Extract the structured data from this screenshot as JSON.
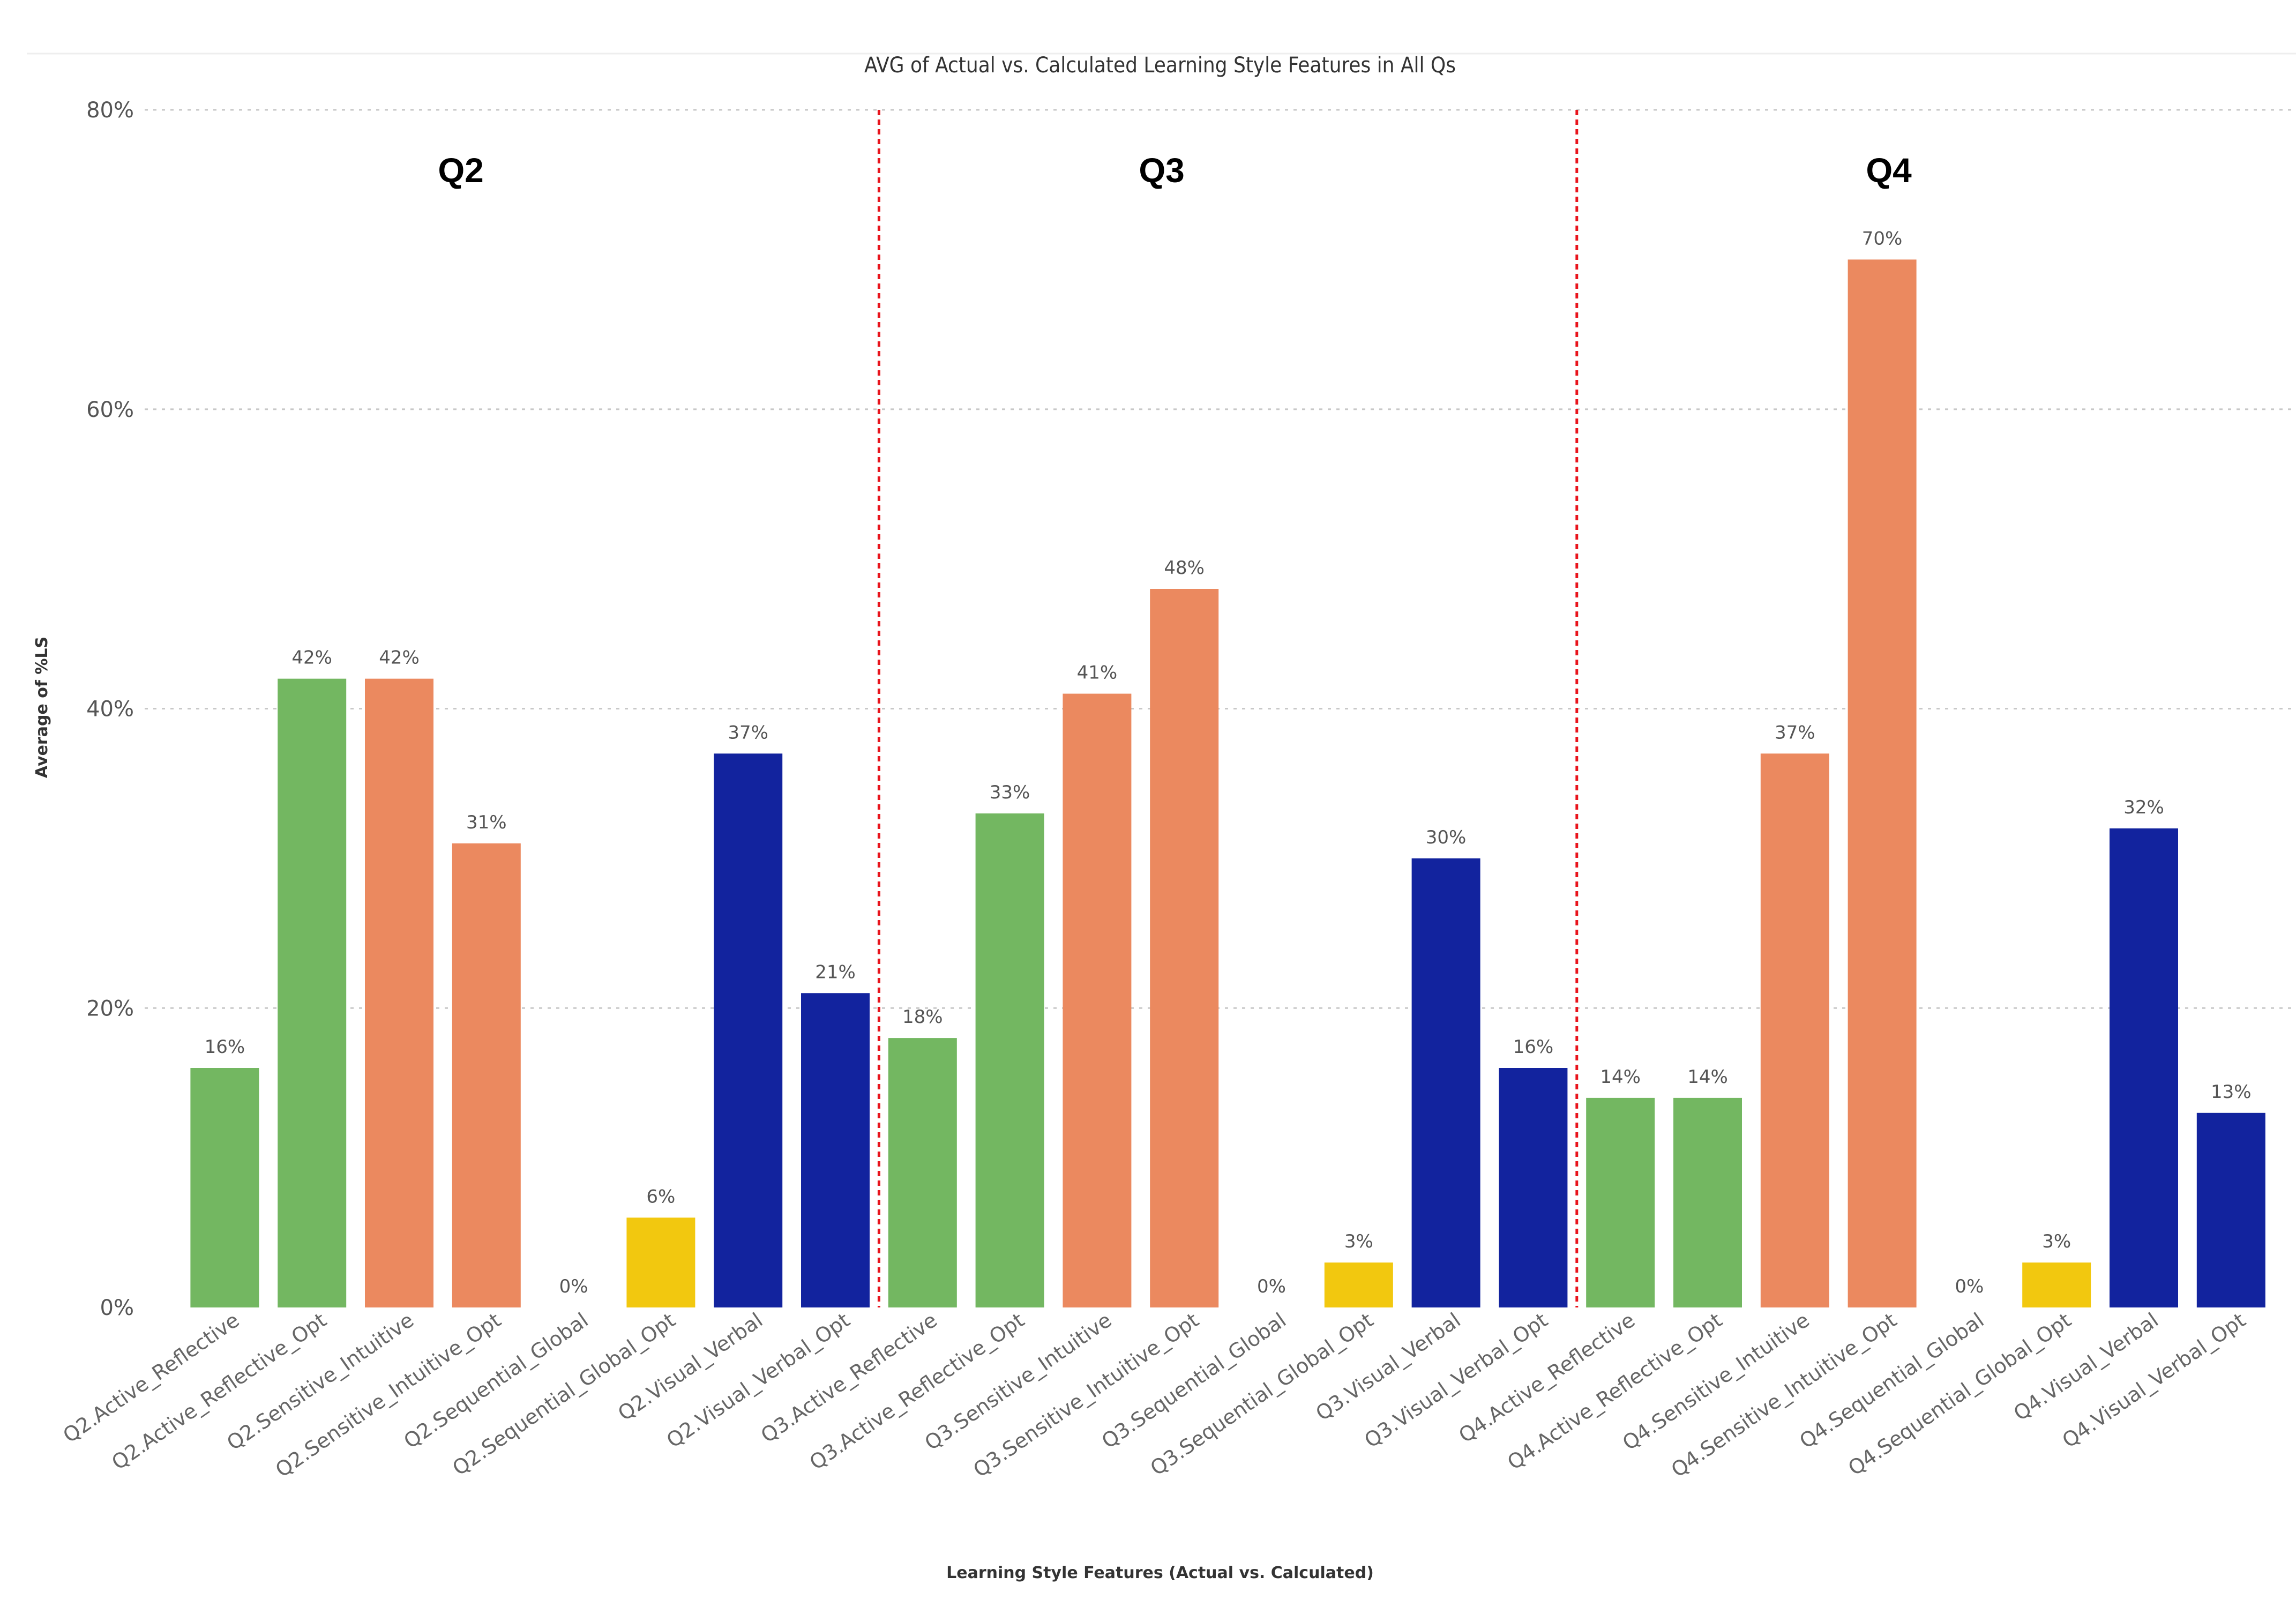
{
  "chart_data": {
    "type": "bar",
    "title": "AVG of Actual vs. Calculated Learning Style Features in All Qs",
    "xlabel": "Learning Style Features (Actual vs. Calculated)",
    "ylabel": "Average of %LS",
    "ylim": [
      0,
      80
    ],
    "yticks": [
      0,
      20,
      40,
      60,
      80
    ],
    "ytick_suffix": "%",
    "grid": true,
    "colors": {
      "active_reflective": "#73b761",
      "sensitive_intuitive": "#eb895f",
      "sequential_global": "#f2c80f",
      "visual_verbal": "#12239e",
      "divider": "#e8141c"
    },
    "categories": [
      "Q2.Active_Reflective",
      "Q2.Active_Reflective_Opt",
      "Q2.Sensitive_Intuitive",
      "Q2.Sensitive_Intuitive_Opt",
      "Q2.Sequential_Global",
      "Q2.Sequential_Global_Opt",
      "Q2.Visual_Verbal",
      "Q2.Visual_Verbal_Opt",
      "Q3.Active_Reflective",
      "Q3.Active_Reflective_Opt",
      "Q3.Sensitive_Intuitive",
      "Q3.Sensitive_Intuitive_Opt",
      "Q3.Sequential_Global",
      "Q3.Sequential_Global_Opt",
      "Q3.Visual_Verbal",
      "Q3.Visual_Verbal_Opt",
      "Q4.Active_Reflective",
      "Q4.Active_Reflective_Opt",
      "Q4.Sensitive_Intuitive",
      "Q4.Sensitive_Intuitive_Opt",
      "Q4.Sequential_Global",
      "Q4.Sequential_Global_Opt",
      "Q4.Visual_Verbal",
      "Q4.Visual_Verbal_Opt"
    ],
    "values": [
      16,
      42,
      42,
      31,
      0,
      6,
      37,
      21,
      18,
      33,
      41,
      48,
      0,
      3,
      30,
      16,
      14,
      14,
      37,
      70,
      0,
      3,
      32,
      13
    ],
    "value_labels": [
      "16%",
      "42%",
      "42%",
      "31%",
      "0%",
      "6%",
      "37%",
      "21%",
      "18%",
      "33%",
      "41%",
      "48%",
      "0%",
      "3%",
      "30%",
      "16%",
      "14%",
      "14%",
      "37%",
      "70%",
      "0%",
      "3%",
      "32%",
      "13%"
    ],
    "bar_color_keys": [
      "active_reflective",
      "active_reflective",
      "sensitive_intuitive",
      "sensitive_intuitive",
      "sequential_global",
      "sequential_global",
      "visual_verbal",
      "visual_verbal",
      "active_reflective",
      "active_reflective",
      "sensitive_intuitive",
      "sensitive_intuitive",
      "sequential_global",
      "sequential_global",
      "visual_verbal",
      "visual_verbal",
      "active_reflective",
      "active_reflective",
      "sensitive_intuitive",
      "sensitive_intuitive",
      "sequential_global",
      "sequential_global",
      "visual_verbal",
      "visual_verbal"
    ],
    "groups": [
      {
        "label": "Q2",
        "start_index": 0,
        "count": 8
      },
      {
        "label": "Q3",
        "start_index": 8,
        "count": 8
      },
      {
        "label": "Q4",
        "start_index": 16,
        "count": 8
      }
    ]
  }
}
